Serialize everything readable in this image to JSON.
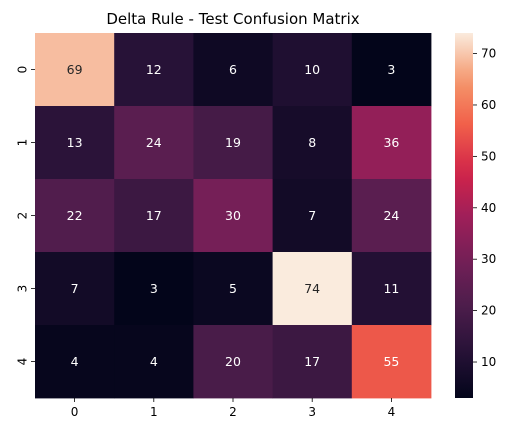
{
  "chart_data": {
    "type": "heatmap",
    "title": "Delta Rule - Test Confusion Matrix",
    "xlabel": "",
    "ylabel": "",
    "x_categories": [
      "0",
      "1",
      "2",
      "3",
      "4"
    ],
    "y_categories": [
      "0",
      "1",
      "2",
      "3",
      "4"
    ],
    "values": [
      [
        69,
        12,
        6,
        10,
        3
      ],
      [
        13,
        24,
        19,
        8,
        36
      ],
      [
        22,
        17,
        30,
        7,
        24
      ],
      [
        7,
        3,
        5,
        74,
        11
      ],
      [
        4,
        4,
        20,
        17,
        55
      ]
    ],
    "vmin": 3,
    "vmax": 74,
    "colorbar_ticks": [
      10,
      20,
      30,
      40,
      50,
      60,
      70
    ],
    "colormap": "rocket",
    "annotations": true
  }
}
